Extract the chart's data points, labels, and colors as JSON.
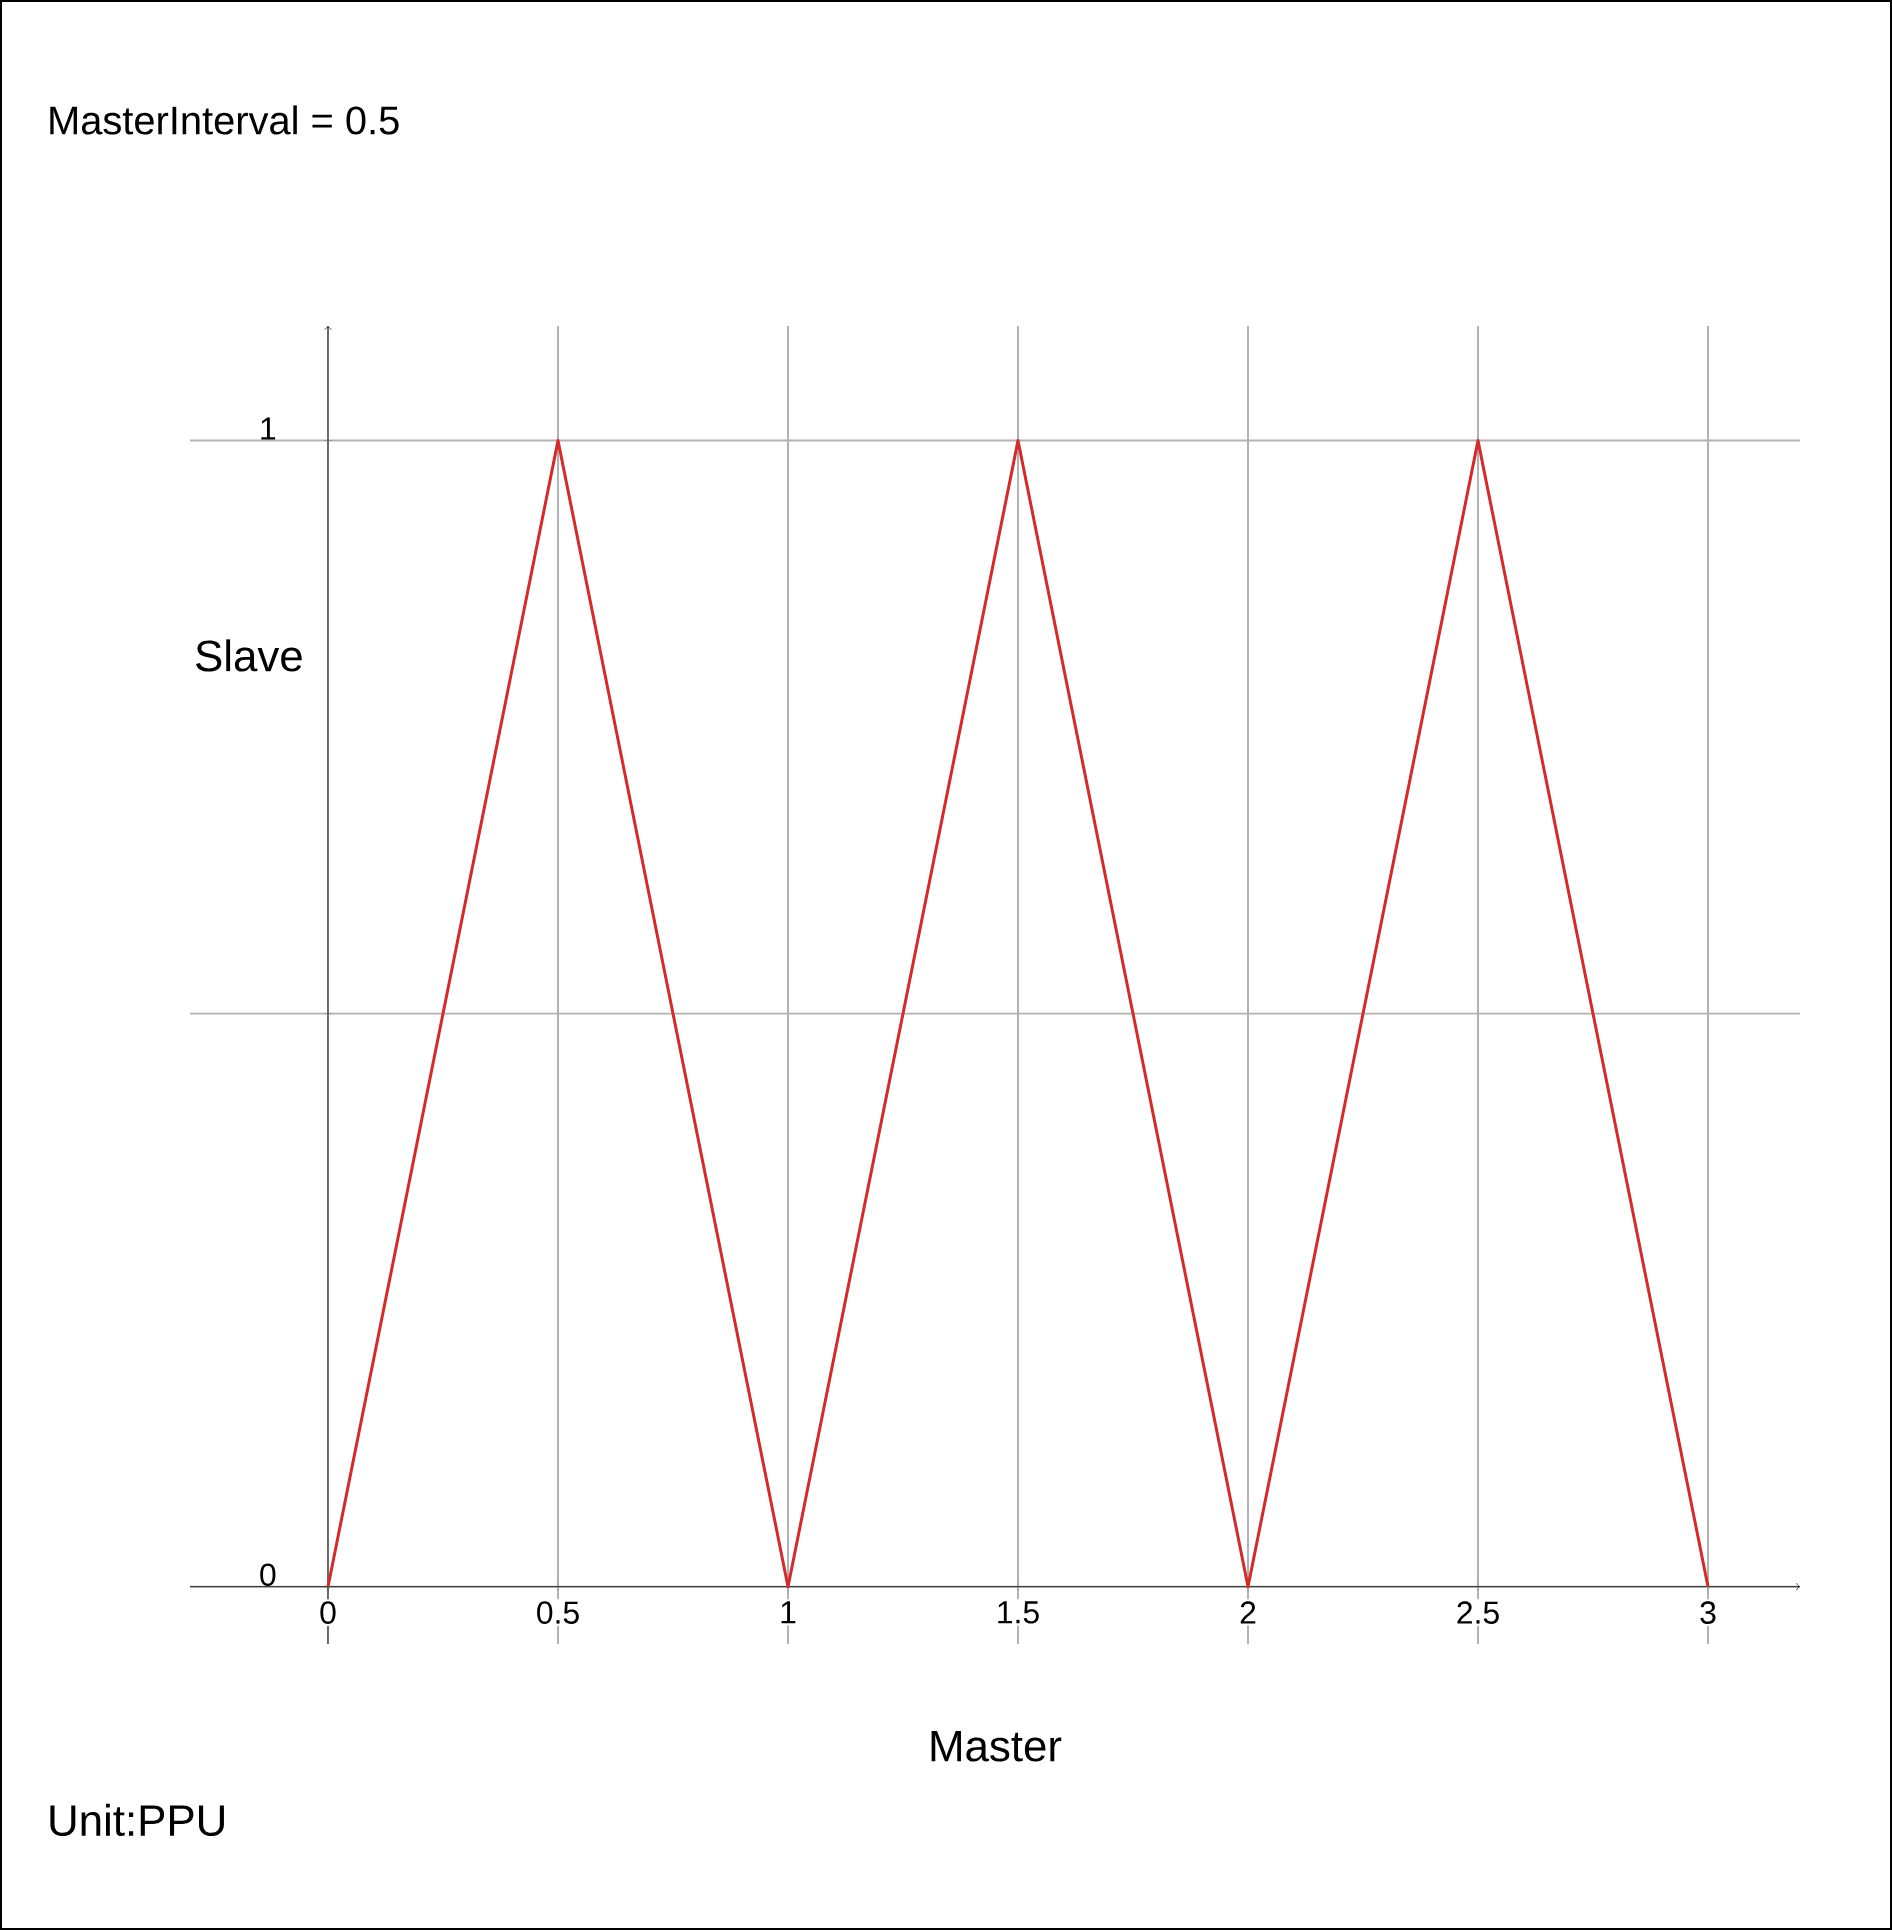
{
  "chart_data": {
    "type": "line",
    "title": "MasterInterval = 0.5",
    "xlabel": "Master",
    "ylabel": "Slave",
    "annotations": [
      "Unit:PPU"
    ],
    "x": [
      0,
      0.5,
      1,
      1.5,
      2,
      2.5,
      3
    ],
    "series": [
      {
        "color": "#d42a2a",
        "values": [
          0,
          1,
          0,
          1,
          0,
          1,
          0
        ]
      }
    ],
    "xlim": [
      -0.3,
      3.2
    ],
    "ylim": [
      -0.05,
      1.1
    ],
    "xticks": [
      {
        "value": 0,
        "label": "0"
      },
      {
        "value": 0.5,
        "label": "0.5"
      },
      {
        "value": 1,
        "label": "1"
      },
      {
        "value": 1.5,
        "label": "1.5"
      },
      {
        "value": 2,
        "label": "2"
      },
      {
        "value": 2.5,
        "label": "2.5"
      },
      {
        "value": 3,
        "label": "3"
      }
    ],
    "yticks": [
      {
        "value": 0,
        "label": "0"
      },
      {
        "value": 0.5,
        "label": null
      },
      {
        "value": 1,
        "label": "1"
      }
    ],
    "grid": true,
    "marker": "none",
    "line_style": "solid"
  }
}
